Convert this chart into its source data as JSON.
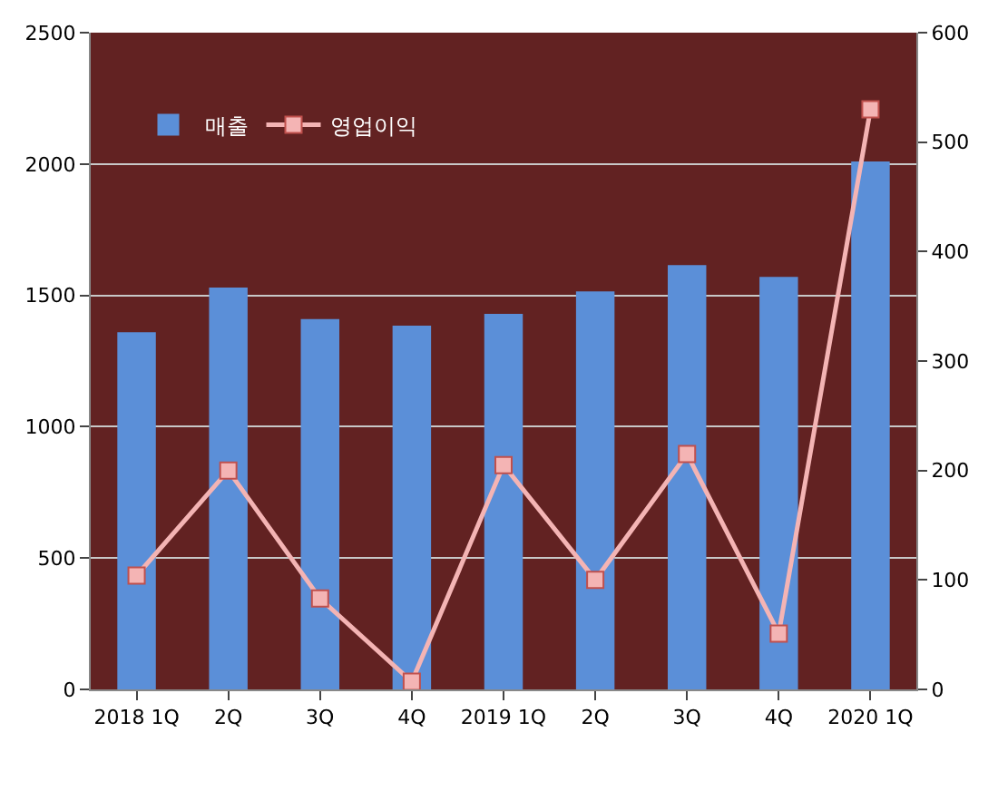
{
  "chart_data": {
    "type": "bar",
    "categories": [
      "2018 1Q",
      "2Q",
      "3Q",
      "4Q",
      "2019 1Q",
      "2Q",
      "3Q",
      "4Q",
      "2020 1Q"
    ],
    "series": [
      {
        "name": "매출",
        "color": "#5b8fd8",
        "values": [
          1360,
          1530,
          1410,
          1385,
          1430,
          1515,
          1615,
          1570,
          2010
        ]
      },
      {
        "name": "영업이익",
        "type": "line",
        "axis": "y2",
        "color": "#f4b4b4",
        "marker": "square",
        "values": [
          104,
          200,
          83,
          7,
          205,
          100,
          215,
          51,
          530
        ]
      }
    ],
    "ylim": [
      0,
      2500
    ],
    "yticks": [
      0,
      500,
      1000,
      1500,
      2000,
      2500
    ],
    "y2lim": [
      0,
      600
    ],
    "y2ticks": [
      0,
      100,
      200,
      300,
      400,
      500,
      600
    ],
    "grid": "y",
    "legend": "top left"
  }
}
